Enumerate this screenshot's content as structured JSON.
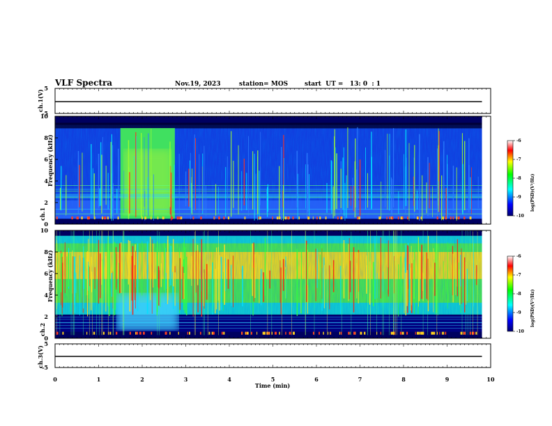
{
  "header": {
    "title": "VLF Spectra",
    "date": "Nov.19, 2023",
    "station": "station= MOS",
    "start": "start  UT =   13: 0  : 1"
  },
  "chart_data": [
    {
      "type": "line",
      "name": "ch1-voltage",
      "ylabel": "ch.1(V)",
      "ylim": [
        -5,
        5
      ],
      "yticks": [
        "5",
        "-5"
      ],
      "x": [
        0,
        9.8
      ],
      "y": [
        0,
        0
      ]
    },
    {
      "type": "heatmap",
      "name": "ch1-spectrogram",
      "ylabel_top": "ch.1",
      "ylabel": "Frequency (kHz)",
      "ylim": [
        0,
        10
      ],
      "yticks": [
        "0",
        "2",
        "4",
        "6",
        "8",
        "10"
      ],
      "xlim": [
        0,
        10
      ],
      "data_extent_min": 9.8,
      "colorbar": {
        "label": "log(PSD)(V²/Hz)",
        "ticks": [
          "-6",
          "-7",
          "-8",
          "-9",
          "-10"
        ],
        "range": [
          -10,
          -6
        ]
      },
      "features": {
        "broadband_band_kHz": [
          0.5,
          9.2
        ],
        "strong_emission_min": [
          1.5,
          2.75
        ]
      }
    },
    {
      "type": "heatmap",
      "name": "ch2-spectrogram",
      "ylabel_top": "ch.2",
      "ylabel": "Frequency (kHz)",
      "ylim": [
        0,
        10
      ],
      "yticks": [
        "0",
        "2",
        "4",
        "6",
        "8",
        "10"
      ],
      "xlim": [
        0,
        10
      ],
      "data_extent_min": 9.8,
      "colorbar": {
        "label": "log(PSD)(V²/Hz)",
        "ticks": [
          "-6",
          "-7",
          "-8",
          "-9",
          "-10"
        ],
        "range": [
          -10,
          -6
        ]
      },
      "features": {
        "intense_band_kHz": [
          5.5,
          8.0
        ],
        "strong_emission_min": [
          1.5,
          2.75
        ]
      }
    },
    {
      "type": "line",
      "name": "ch3-voltage",
      "ylabel": "ch.3(V)",
      "ylim": [
        -5,
        5
      ],
      "yticks": [
        "5",
        "-5"
      ],
      "x": [
        0,
        9.8
      ],
      "y": [
        0,
        0
      ]
    }
  ],
  "xaxis": {
    "label": "Time (min)",
    "ticks": [
      "0",
      "1",
      "2",
      "3",
      "4",
      "5",
      "6",
      "7",
      "8",
      "9",
      "10"
    ]
  },
  "colors": {
    "axis": "#000000",
    "background": "#ffffff"
  }
}
